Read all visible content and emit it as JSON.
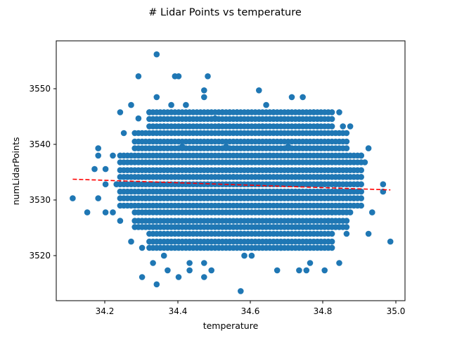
{
  "chart_data": {
    "type": "scatter",
    "title": "# Lidar Points vs temperature",
    "xlabel": "temperature",
    "ylabel": "numLidarPoints",
    "xlim": [
      34.065,
      35.02
    ],
    "ylim": [
      3512.6,
      3558.8
    ],
    "xticks": [
      "34.2",
      "34.4",
      "34.6",
      "34.8",
      "35.0"
    ],
    "yticks": [
      "3520",
      "3530",
      "3540",
      "3550"
    ],
    "grid": false,
    "marker_color": "#1f77b4",
    "trend_color": "#ff0000",
    "points": [
      [
        34.11,
        3530.8
      ],
      [
        34.15,
        3528.3
      ],
      [
        34.17,
        3536.0
      ],
      [
        34.18,
        3539.7
      ],
      [
        34.18,
        3538.4
      ],
      [
        34.18,
        3530.8
      ],
      [
        34.2,
        3528.3
      ],
      [
        34.2,
        3533.3
      ],
      [
        34.2,
        3536.0
      ],
      [
        34.22,
        3538.4
      ],
      [
        34.22,
        3528.3
      ],
      [
        34.23,
        3533.3
      ],
      [
        34.24,
        3546.1
      ],
      [
        34.24,
        3526.8
      ],
      [
        34.25,
        3542.4
      ],
      [
        34.27,
        3547.4
      ],
      [
        34.27,
        3523.1
      ],
      [
        34.29,
        3552.5
      ],
      [
        34.29,
        3545.0
      ],
      [
        34.3,
        3522.0
      ],
      [
        34.3,
        3516.8
      ],
      [
        34.31,
        3530.8
      ],
      [
        34.32,
        3546.1
      ],
      [
        34.33,
        3519.3
      ],
      [
        34.34,
        3556.4
      ],
      [
        34.34,
        3548.8
      ],
      [
        34.34,
        3515.5
      ],
      [
        34.36,
        3543.6
      ],
      [
        34.36,
        3520.6
      ],
      [
        34.37,
        3518.0
      ],
      [
        34.38,
        3547.4
      ],
      [
        34.39,
        3552.5
      ],
      [
        34.4,
        3552.5
      ],
      [
        34.4,
        3516.8
      ],
      [
        34.41,
        3540.0
      ],
      [
        34.42,
        3547.4
      ],
      [
        34.43,
        3519.3
      ],
      [
        34.43,
        3518.0
      ],
      [
        34.45,
        3523.1
      ],
      [
        34.47,
        3550.0
      ],
      [
        34.47,
        3548.8
      ],
      [
        34.47,
        3519.3
      ],
      [
        34.47,
        3516.8
      ],
      [
        34.48,
        3552.5
      ],
      [
        34.49,
        3518.0
      ],
      [
        34.5,
        3545.0
      ],
      [
        34.51,
        3543.6
      ],
      [
        34.52,
        3546.1
      ],
      [
        34.53,
        3540.0
      ],
      [
        34.54,
        3546.1
      ],
      [
        34.55,
        3534.6
      ],
      [
        34.56,
        3546.1
      ],
      [
        34.57,
        3524.5
      ],
      [
        34.57,
        3514.3
      ],
      [
        34.58,
        3520.6
      ],
      [
        34.6,
        3520.6
      ],
      [
        34.62,
        3550.0
      ],
      [
        34.63,
        3543.6
      ],
      [
        34.64,
        3547.4
      ],
      [
        34.65,
        3538.4
      ],
      [
        34.66,
        3546.1
      ],
      [
        34.67,
        3518.0
      ],
      [
        34.68,
        3522.0
      ],
      [
        34.69,
        3544.9
      ],
      [
        34.7,
        3540.0
      ],
      [
        34.71,
        3548.8
      ],
      [
        34.72,
        3530.8
      ],
      [
        34.73,
        3518.0
      ],
      [
        34.74,
        3548.8
      ],
      [
        34.75,
        3518.0
      ],
      [
        34.76,
        3519.3
      ],
      [
        34.77,
        3546.1
      ],
      [
        34.78,
        3543.6
      ],
      [
        34.79,
        3533.3
      ],
      [
        34.8,
        3518.0
      ],
      [
        34.81,
        3526.8
      ],
      [
        34.82,
        3528.3
      ],
      [
        34.83,
        3533.3
      ],
      [
        34.84,
        3546.1
      ],
      [
        34.84,
        3519.3
      ],
      [
        34.85,
        3543.6
      ],
      [
        34.86,
        3524.5
      ],
      [
        34.87,
        3543.6
      ],
      [
        34.87,
        3528.3
      ],
      [
        34.88,
        3530.8
      ],
      [
        34.89,
        3533.3
      ],
      [
        34.9,
        3538.4
      ],
      [
        34.91,
        3537.2
      ],
      [
        34.92,
        3539.7
      ],
      [
        34.92,
        3524.5
      ],
      [
        34.93,
        3528.3
      ],
      [
        34.96,
        3533.3
      ],
      [
        34.96,
        3532.0
      ],
      [
        34.98,
        3523.1
      ]
    ],
    "dense_cluster": {
      "x_range": [
        34.24,
        34.9
      ],
      "y_range": [
        3521.8,
        3546.2
      ],
      "x_step": 0.01,
      "y_values": [
        3522.0,
        3523.1,
        3524.5,
        3525.7,
        3526.8,
        3528.3,
        3529.5,
        3530.8,
        3532.0,
        3533.3,
        3534.6,
        3535.8,
        3537.2,
        3538.4,
        3539.7,
        3540.9,
        3542.4,
        3543.6,
        3544.9,
        3546.1
      ]
    },
    "trend_line": {
      "style": "dashed",
      "x": [
        34.11,
        34.98
      ],
      "y": [
        3534.2,
        3532.3
      ]
    }
  }
}
